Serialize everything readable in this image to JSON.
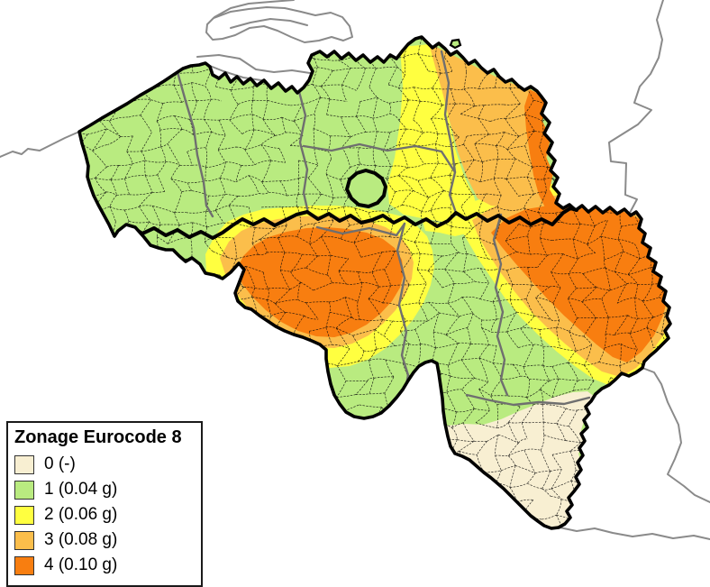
{
  "legend": {
    "title": "Zonage Eurocode 8",
    "items": [
      {
        "zone": "0",
        "label": "0 (-)",
        "color": "#F8EFD2"
      },
      {
        "zone": "1",
        "label": "1 (0.04 g)",
        "color": "#B9EB80"
      },
      {
        "zone": "2",
        "label": "2 (0.06 g)",
        "color": "#FFFF40"
      },
      {
        "zone": "3",
        "label": "3 (0.08 g)",
        "color": "#FBBE4B"
      },
      {
        "zone": "4",
        "label": "4 (0.10 g)",
        "color": "#F87E10"
      }
    ]
  },
  "map": {
    "colors": {
      "country_border": "#000000",
      "region_border": "#000000",
      "province_border": "#6f6f6f",
      "municipal_border": "#0a0a0a",
      "neighbor_border": "#8a8a8a",
      "background": "#ffffff"
    }
  }
}
